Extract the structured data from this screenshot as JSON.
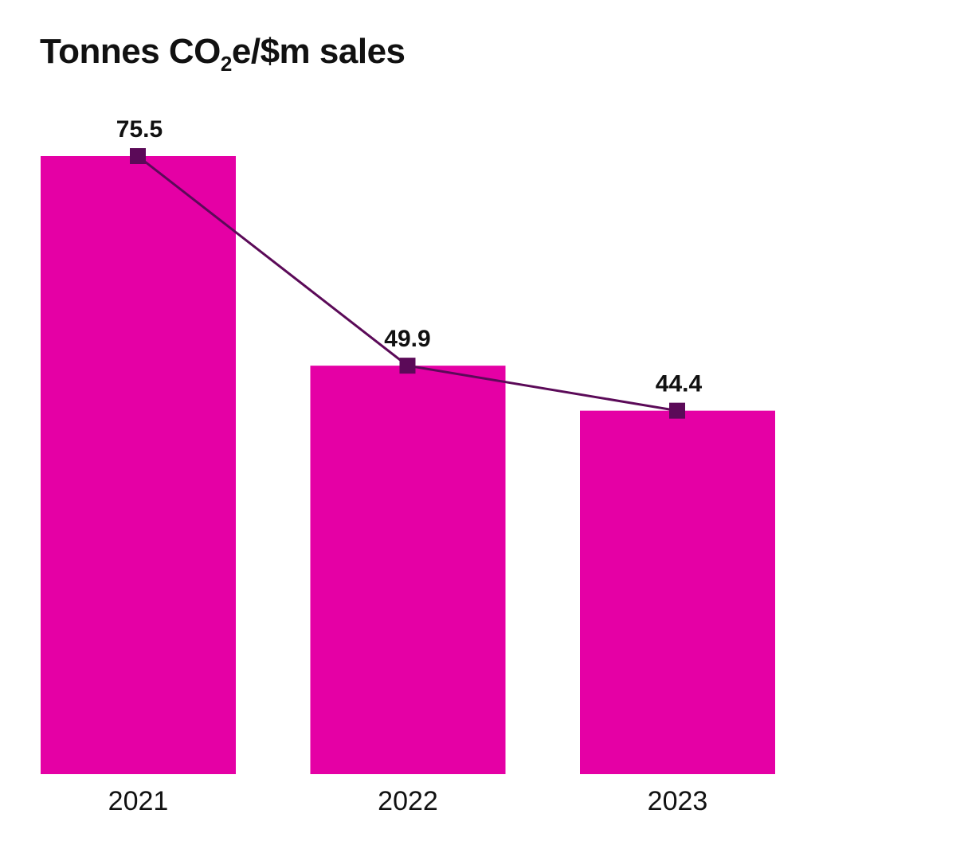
{
  "title_parts": {
    "before_sub": "Tonnes CO",
    "sub": "2",
    "after_sub": "e/$m sales"
  },
  "chart_data": {
    "type": "bar",
    "title": "Tonnes CO2e/$m sales",
    "categories": [
      "2021",
      "2022",
      "2023"
    ],
    "series": [
      {
        "values": [
          75.5,
          49.9,
          44.4
        ]
      }
    ],
    "overlay": "line",
    "data_labels": [
      "75.5",
      "49.9",
      "44.4"
    ],
    "ylim": [
      0,
      75.5
    ],
    "grid": false,
    "legend": "none",
    "colors": {
      "bar": "#E500A5",
      "line": "#5B0A58",
      "marker": "#5B0A58"
    }
  }
}
